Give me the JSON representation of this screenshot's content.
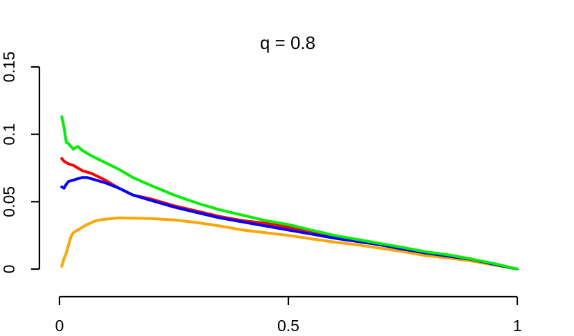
{
  "chart_data": {
    "type": "line",
    "title": "q = 0.8",
    "xlabel": "",
    "ylabel": "",
    "xlim": [
      0,
      1
    ],
    "ylim": [
      0,
      0.15
    ],
    "grid": false,
    "x_ticks": [
      {
        "value": 0,
        "label": "0"
      },
      {
        "value": 0.5,
        "label": "0.5"
      },
      {
        "value": 1,
        "label": "1"
      }
    ],
    "y_ticks": [
      {
        "value": 0,
        "label": "0"
      },
      {
        "value": 0.05,
        "label": "0.05"
      },
      {
        "value": 0.1,
        "label": "0.1"
      },
      {
        "value": 0.15,
        "label": "0.15"
      }
    ],
    "series": [
      {
        "color": "#ffa500",
        "x": [
          0.005,
          0.01,
          0.015,
          0.02,
          0.025,
          0.03,
          0.04,
          0.05,
          0.06,
          0.08,
          0.1,
          0.13,
          0.16,
          0.2,
          0.25,
          0.3,
          0.35,
          0.4,
          0.45,
          0.5,
          0.55,
          0.6,
          0.65,
          0.7,
          0.75,
          0.8,
          0.85,
          0.9,
          0.95,
          1.0
        ],
        "y": [
          0.002,
          0.008,
          0.012,
          0.018,
          0.024,
          0.027,
          0.029,
          0.031,
          0.033,
          0.036,
          0.037,
          0.038,
          0.0378,
          0.0375,
          0.0365,
          0.0345,
          0.032,
          0.029,
          0.027,
          0.025,
          0.0225,
          0.02,
          0.018,
          0.0155,
          0.013,
          0.01,
          0.0082,
          0.006,
          0.003,
          0.0
        ]
      },
      {
        "color": "#ff0000",
        "x": [
          0.005,
          0.01,
          0.02,
          0.03,
          0.05,
          0.07,
          0.1,
          0.13,
          0.16,
          0.2,
          0.25,
          0.3,
          0.35,
          0.4,
          0.45,
          0.5,
          0.55,
          0.6,
          0.65,
          0.7,
          0.75,
          0.8,
          0.85,
          0.9,
          0.95,
          1.0
        ],
        "y": [
          0.082,
          0.08,
          0.078,
          0.077,
          0.073,
          0.071,
          0.066,
          0.06,
          0.055,
          0.052,
          0.047,
          0.043,
          0.039,
          0.036,
          0.034,
          0.031,
          0.028,
          0.024,
          0.021,
          0.018,
          0.015,
          0.012,
          0.01,
          0.0075,
          0.0035,
          0.0
        ]
      },
      {
        "color": "#0000ff",
        "x": [
          0.005,
          0.01,
          0.015,
          0.02,
          0.03,
          0.04,
          0.05,
          0.06,
          0.08,
          0.1,
          0.13,
          0.16,
          0.2,
          0.25,
          0.3,
          0.35,
          0.4,
          0.45,
          0.5,
          0.55,
          0.6,
          0.65,
          0.7,
          0.75,
          0.8,
          0.85,
          0.9,
          0.95,
          1.0
        ],
        "y": [
          0.061,
          0.06,
          0.063,
          0.065,
          0.066,
          0.067,
          0.068,
          0.068,
          0.066,
          0.064,
          0.06,
          0.055,
          0.051,
          0.046,
          0.042,
          0.038,
          0.035,
          0.032,
          0.029,
          0.026,
          0.023,
          0.0205,
          0.018,
          0.0148,
          0.012,
          0.0095,
          0.0072,
          0.0035,
          0.0
        ]
      },
      {
        "color": "#00ee00",
        "x": [
          0.005,
          0.01,
          0.015,
          0.02,
          0.03,
          0.04,
          0.05,
          0.07,
          0.1,
          0.13,
          0.16,
          0.2,
          0.25,
          0.3,
          0.35,
          0.4,
          0.45,
          0.5,
          0.55,
          0.6,
          0.65,
          0.7,
          0.75,
          0.8,
          0.85,
          0.9,
          0.95,
          1.0
        ],
        "y": [
          0.113,
          0.105,
          0.094,
          0.093,
          0.089,
          0.091,
          0.088,
          0.084,
          0.079,
          0.074,
          0.068,
          0.062,
          0.055,
          0.049,
          0.044,
          0.04,
          0.036,
          0.033,
          0.029,
          0.025,
          0.022,
          0.019,
          0.016,
          0.0128,
          0.0105,
          0.0075,
          0.004,
          0.0
        ]
      }
    ]
  }
}
